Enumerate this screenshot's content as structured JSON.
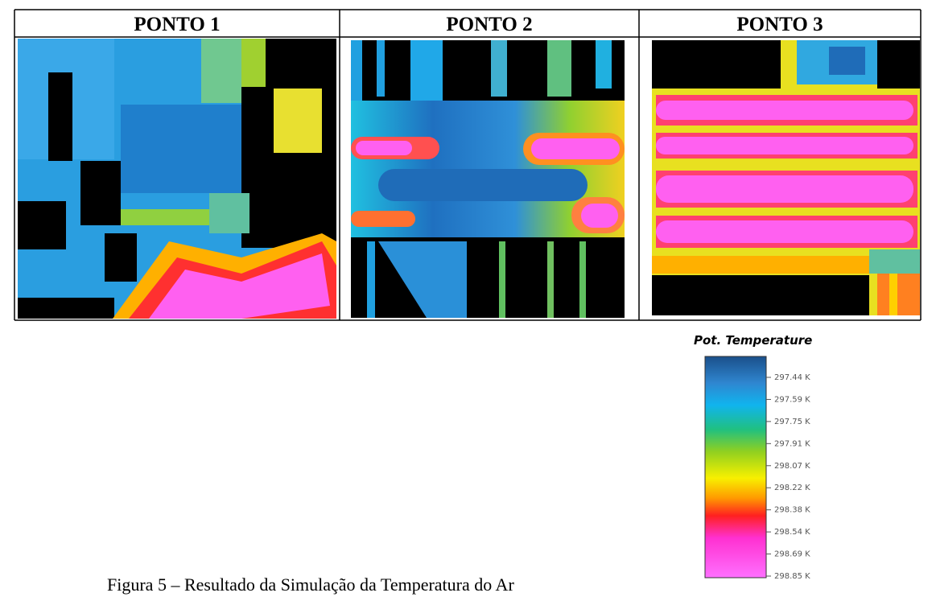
{
  "table": {
    "headers": [
      "PONTO 1",
      "PONTO 2",
      "PONTO 3"
    ]
  },
  "legend": {
    "title": "Pot. Temperature",
    "labels": [
      "297.44 K",
      "297.59 K",
      "297.75 K",
      "297.91 K",
      "298.07 K",
      "298.22 K",
      "298.38 K",
      "298.54 K",
      "298.69 K",
      "298.85 K"
    ]
  },
  "caption": "Figura 5 – Resultado da Simulação da Temperatura do Ar"
}
